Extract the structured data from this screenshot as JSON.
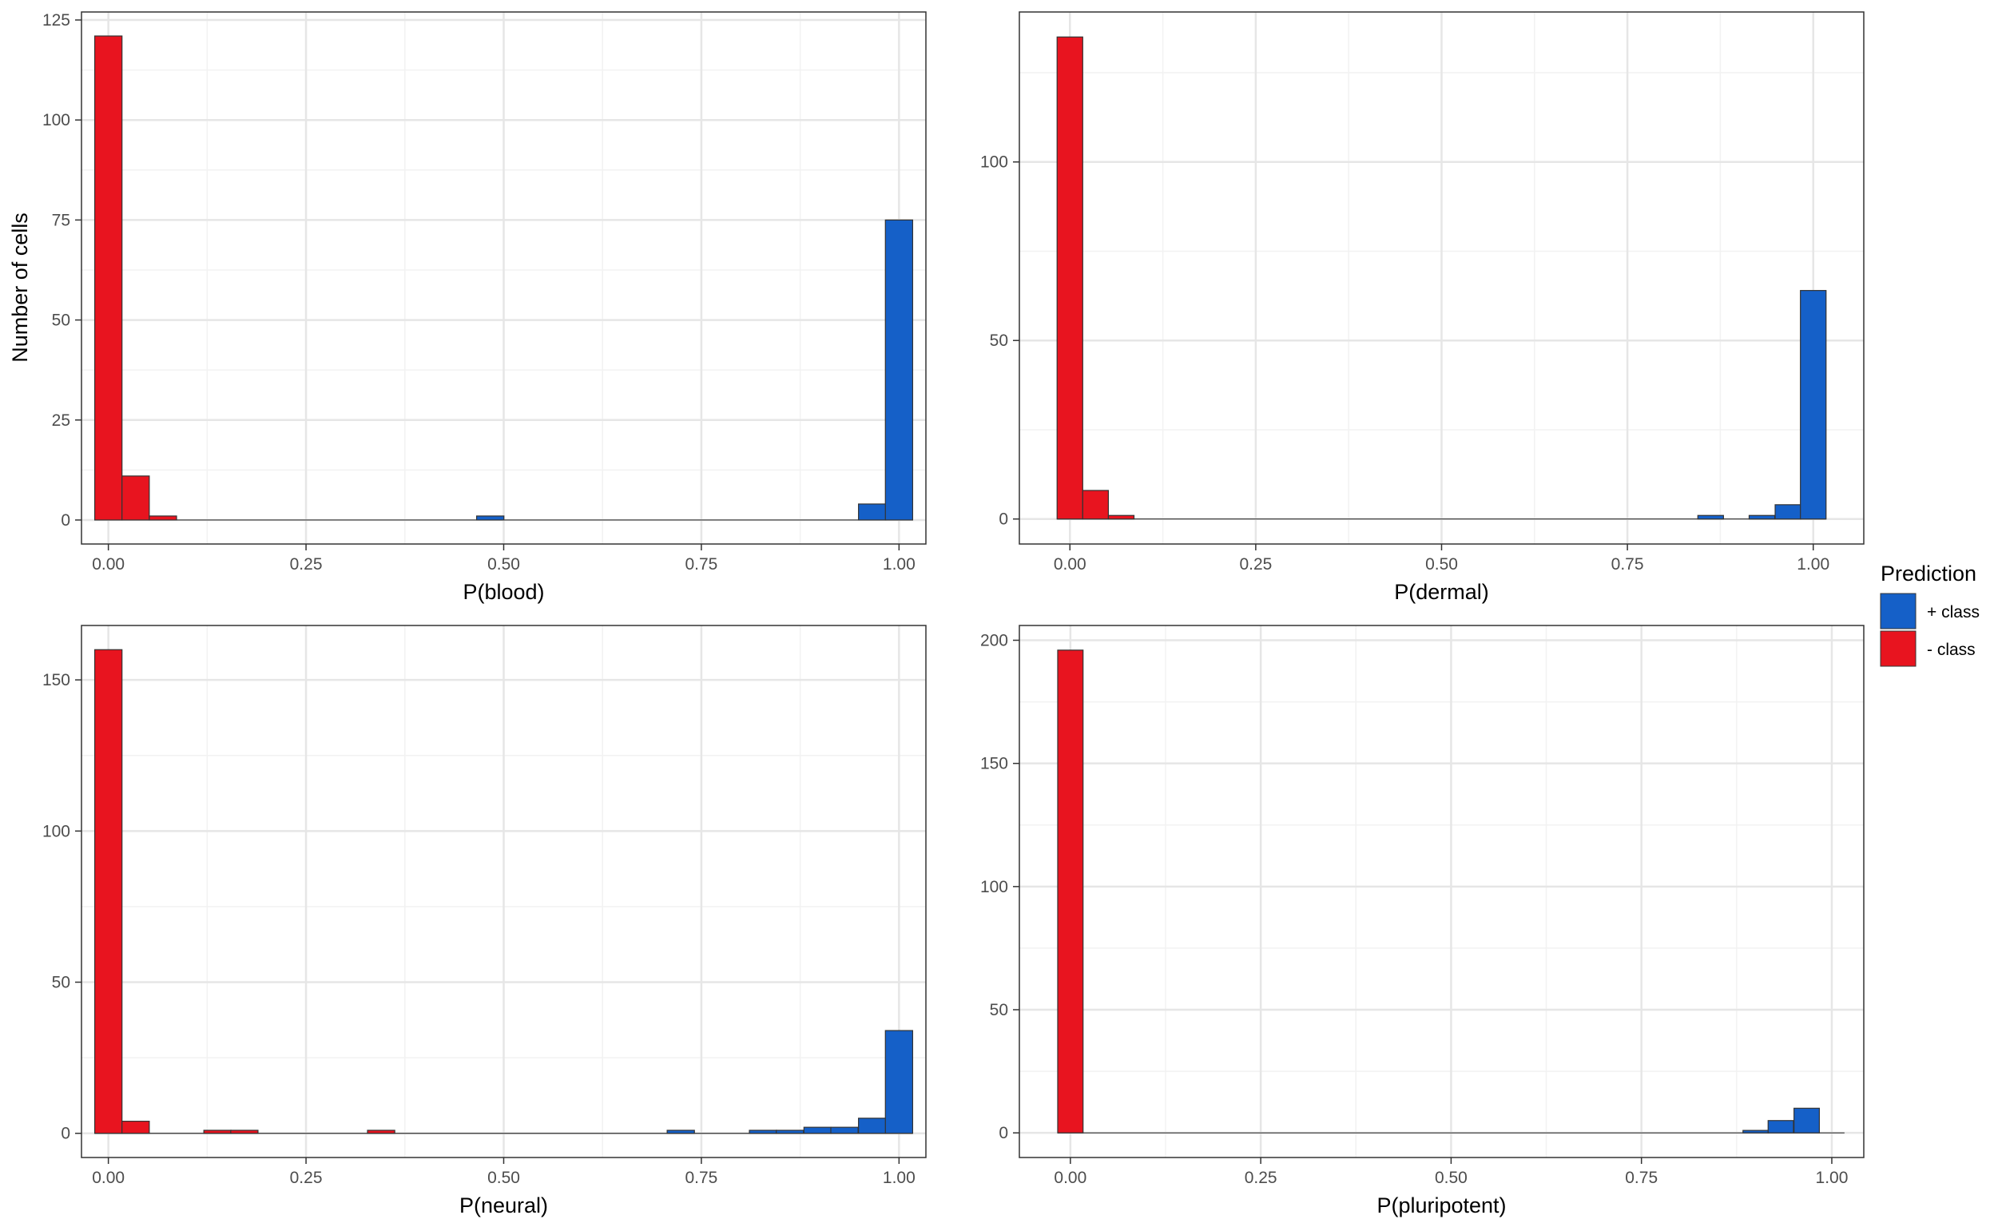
{
  "colors": {
    "positive": "#1560C8",
    "negative": "#E8141F",
    "bar_outline": "#333333",
    "panel_border": "#333333",
    "grid_major": "#e6e6e6",
    "grid_minor": "#f2f2f2",
    "axis_text": "#4d4d4d",
    "title_text": "#000000"
  },
  "legend": {
    "title": "Prediction",
    "placement": "right",
    "entries": [
      {
        "label": "+ class",
        "series": "positive"
      },
      {
        "label": "- class",
        "series": "negative"
      }
    ]
  },
  "shared_ylabel": "Number of cells",
  "chart_data": [
    {
      "type": "bar",
      "title": "",
      "xlabel": "P(blood)",
      "ylabel": "Number of cells",
      "xlim": [
        -0.034,
        1.034
      ],
      "ylim": [
        -6,
        127
      ],
      "xticks": [
        0,
        0.25,
        0.5,
        0.75,
        1
      ],
      "xtick_labels": [
        "0.00",
        "0.25",
        "0.50",
        "0.75",
        "1.00"
      ],
      "yticks": [
        0,
        25,
        50,
        75,
        100,
        125
      ],
      "ytick_labels": [
        "0",
        "25",
        "50",
        "75",
        "100",
        "125"
      ],
      "grid": true,
      "bin_width": 0.0345,
      "series": [
        {
          "name": "- class",
          "class": "negative",
          "x": [
            0.0,
            0.0345,
            0.069
          ],
          "values": [
            121,
            11,
            1
          ]
        },
        {
          "name": "+ class",
          "class": "positive",
          "x": [
            0.483,
            0.966,
            1.0
          ],
          "values": [
            1,
            4,
            75
          ]
        }
      ]
    },
    {
      "type": "bar",
      "title": "",
      "xlabel": "P(dermal)",
      "ylabel": "",
      "xlim": [
        -0.068,
        1.068
      ],
      "ylim": [
        -7,
        142
      ],
      "xticks": [
        0,
        0.25,
        0.5,
        0.75,
        1
      ],
      "xtick_labels": [
        "0.00",
        "0.25",
        "0.50",
        "0.75",
        "1.00"
      ],
      "yticks": [
        0,
        50,
        100
      ],
      "ytick_labels": [
        "0",
        "50",
        "100"
      ],
      "grid": true,
      "bin_width": 0.0345,
      "series": [
        {
          "name": "- class",
          "class": "negative",
          "x": [
            0.0,
            0.0345,
            0.069
          ],
          "values": [
            135,
            8,
            1
          ]
        },
        {
          "name": "+ class",
          "class": "positive",
          "x": [
            0.862,
            0.931,
            0.966,
            1.0
          ],
          "values": [
            1,
            1,
            4,
            64
          ]
        }
      ]
    },
    {
      "type": "bar",
      "title": "",
      "xlabel": "P(neural)",
      "ylabel": "",
      "xlim": [
        -0.034,
        1.034
      ],
      "ylim": [
        -8,
        168
      ],
      "xticks": [
        0,
        0.25,
        0.5,
        0.75,
        1
      ],
      "xtick_labels": [
        "0.00",
        "0.25",
        "0.50",
        "0.75",
        "1.00"
      ],
      "yticks": [
        0,
        50,
        100,
        150
      ],
      "ytick_labels": [
        "0",
        "50",
        "100",
        "150"
      ],
      "grid": true,
      "bin_width": 0.0345,
      "series": [
        {
          "name": "- class",
          "class": "negative",
          "x": [
            0.0,
            0.0345,
            0.138,
            0.172,
            0.345
          ],
          "values": [
            160,
            4,
            1,
            1,
            1
          ]
        },
        {
          "name": "+ class",
          "class": "positive",
          "x": [
            0.724,
            0.828,
            0.862,
            0.897,
            0.931,
            0.966,
            1.0
          ],
          "values": [
            1,
            1,
            1,
            2,
            2,
            5,
            34
          ]
        }
      ]
    },
    {
      "type": "bar",
      "title": "",
      "xlabel": "P(pluripotent)",
      "ylabel": "",
      "xlim": [
        -0.067,
        1.042
      ],
      "ylim": [
        -10,
        206
      ],
      "xticks": [
        0,
        0.25,
        0.5,
        0.75,
        1
      ],
      "xtick_labels": [
        "0.00",
        "0.25",
        "0.50",
        "0.75",
        "1.00"
      ],
      "yticks": [
        0,
        50,
        100,
        150,
        200
      ],
      "ytick_labels": [
        "0",
        "50",
        "100",
        "150",
        "200"
      ],
      "grid": true,
      "bin_width": 0.0333,
      "series": [
        {
          "name": "- class",
          "class": "negative",
          "x": [
            0.0
          ],
          "values": [
            196
          ]
        },
        {
          "name": "+ class",
          "class": "positive",
          "x": [
            0.9,
            0.933,
            0.967
          ],
          "values": [
            1,
            5,
            10
          ]
        }
      ]
    }
  ]
}
